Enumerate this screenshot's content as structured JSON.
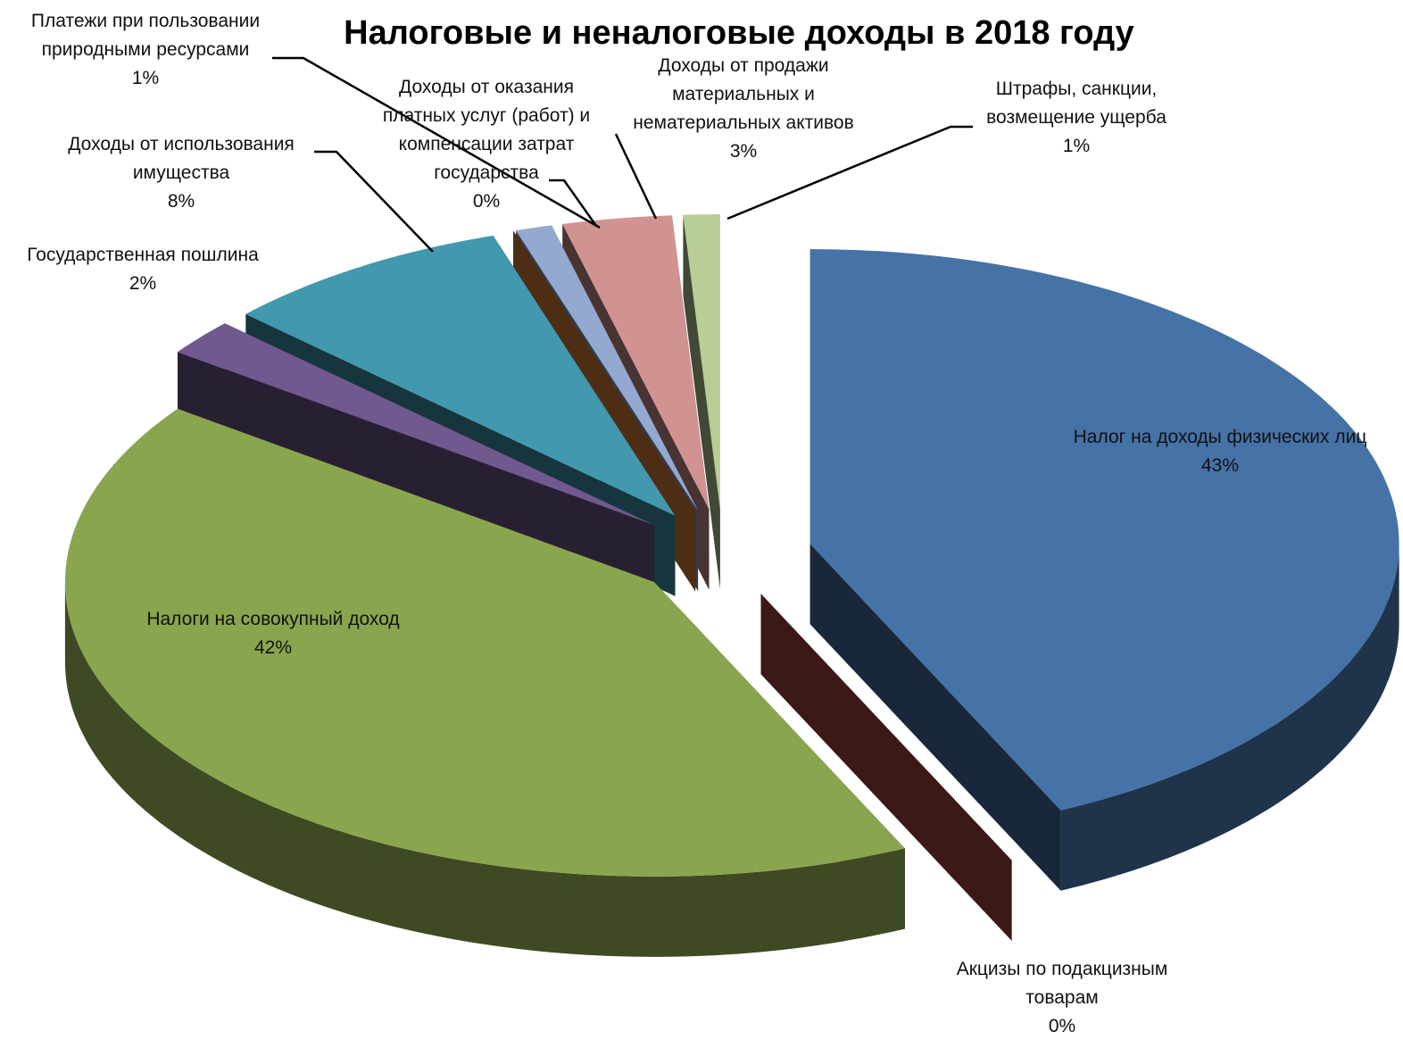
{
  "chart_data": {
    "type": "pie3d",
    "title": "Налоговые и неналоговые доходы в 2018 году",
    "categories": [
      "Налог на доходы физических лиц",
      "Акцизы по подакцизным товарам",
      "Налоги на совокупный доход",
      "Государственная пошлина",
      "Доходы от использования имущества",
      "Доходы от оказания платных услуг (работ) и компенсации затрат государства",
      "Платежи при пользовании природными ресурсами",
      "Доходы от продажи материальных и нематериальных активов",
      "Штрафы, санкции, возмещение ущерба"
    ],
    "values": [
      43,
      0,
      42,
      2,
      8,
      0,
      1,
      3,
      1
    ],
    "value_labels": [
      "43%",
      "0%",
      "42%",
      "2%",
      "8%",
      "0%",
      "1%",
      "3%",
      "1%"
    ],
    "colors": [
      "#4572a7",
      "#aa4643",
      "#89a54e",
      "#71588f",
      "#4198af",
      "#db843d",
      "#93a9cf",
      "#d19392",
      "#b9cd96"
    ]
  }
}
